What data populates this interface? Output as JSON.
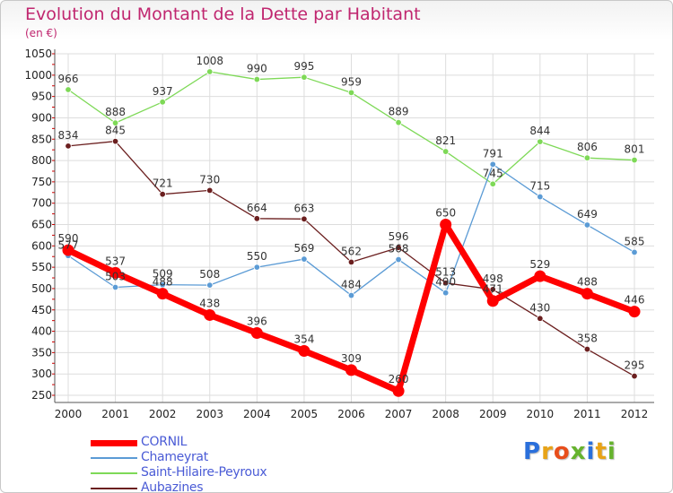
{
  "header": {
    "title": "Evolution du Montant de la Dette par Habitant",
    "unit": "(en €)"
  },
  "logo": {
    "text": "Proxiti",
    "letter_colors": [
      "#2a6fdb",
      "#e8a317",
      "#e84e1b",
      "#66b32e",
      "#2a6fdb",
      "#e8a317",
      "#66b32e"
    ]
  },
  "chart_data": {
    "type": "line",
    "title": "Evolution du Montant de la Dette par Habitant",
    "ylabel": "(en €)",
    "xlabel": "",
    "x": [
      "2000",
      "2001",
      "2002",
      "2003",
      "2004",
      "2005",
      "2006",
      "2007",
      "2008",
      "2009",
      "2010",
      "2011",
      "2012"
    ],
    "ylim": [
      250,
      1050
    ],
    "yticks": [
      250,
      300,
      350,
      400,
      450,
      500,
      550,
      600,
      650,
      700,
      750,
      800,
      850,
      900,
      950,
      1000,
      1050
    ],
    "grid": true,
    "legend_position": "bottom-left",
    "series": [
      {
        "name": "Saint-Hilaire-Peyroux",
        "color": "#7ed957",
        "values": [
          966,
          888,
          937,
          1008,
          990,
          995,
          959,
          889,
          821,
          745,
          844,
          806,
          801
        ],
        "labels": [
          "966",
          "888",
          "937",
          "1008",
          "990",
          "995",
          "959",
          "889",
          "821",
          "745",
          "844",
          "806",
          "801"
        ]
      },
      {
        "name": "Chameyrat",
        "color": "#5b9bd5",
        "values": [
          577,
          503,
          509,
          508,
          550,
          569,
          484,
          568,
          490,
          791,
          715,
          649,
          585
        ],
        "labels": [
          "577",
          "503",
          "509",
          "508",
          "550",
          "569",
          "484",
          "568",
          "490",
          "791",
          "715",
          "649",
          "585"
        ]
      },
      {
        "name": "Aubazines",
        "color": "#6b1f1f",
        "values": [
          834,
          845,
          721,
          730,
          664,
          663,
          562,
          596,
          513,
          498,
          430,
          358,
          295
        ],
        "labels": [
          "834",
          "845",
          "721",
          "730",
          "664",
          "663",
          "562",
          "596",
          "513",
          "498",
          "430",
          "358",
          "295"
        ]
      },
      {
        "name": "CORNIL",
        "color": "#ff0000",
        "values": [
          590,
          537,
          488,
          438,
          396,
          354,
          309,
          260,
          650,
          471,
          529,
          488,
          446
        ],
        "labels": [
          "590",
          "537",
          "488",
          "438",
          "396",
          "354",
          "309",
          "260",
          "650",
          "471",
          "529",
          "488",
          "446"
        ]
      }
    ]
  },
  "legend": [
    {
      "label": "CORNIL",
      "color": "#ff0000",
      "thick": true
    },
    {
      "label": "Chameyrat",
      "color": "#5b9bd5",
      "thick": false
    },
    {
      "label": "Saint-Hilaire-Peyroux",
      "color": "#7ed957",
      "thick": false
    },
    {
      "label": "Aubazines",
      "color": "#6b1f1f",
      "thick": false
    }
  ]
}
